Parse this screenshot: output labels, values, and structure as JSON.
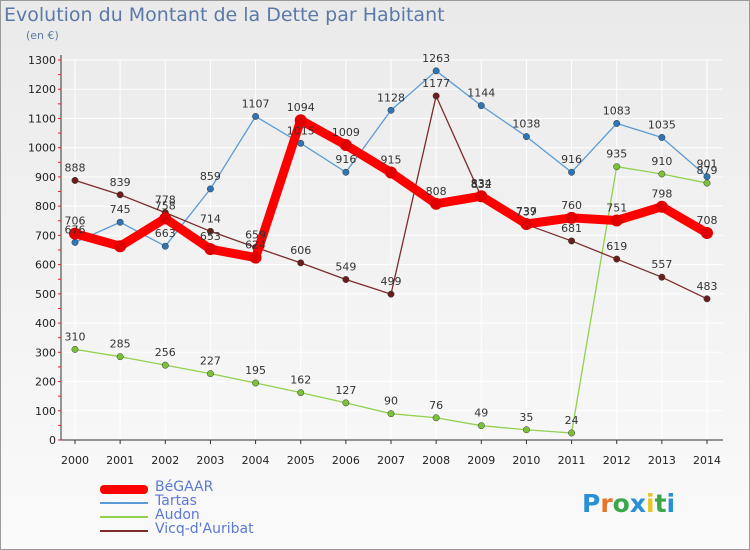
{
  "header": {
    "title": "Evolution du Montant de la Dette par Habitant",
    "unit": "(en €)"
  },
  "logo": {
    "text": "Proxiti",
    "letter_colors": [
      "#2a8fd6",
      "#e8762a",
      "#3aa84a",
      "#2a8fd6",
      "#e8c62a",
      "#3aa84a",
      "#2a8fd6"
    ]
  },
  "chart_data": {
    "type": "line",
    "x": [
      "2000",
      "2001",
      "2002",
      "2003",
      "2004",
      "2005",
      "2006",
      "2007",
      "2008",
      "2009",
      "2010",
      "2011",
      "2012",
      "2013",
      "2014"
    ],
    "ylim": [
      0,
      1300
    ],
    "yticks": [
      0,
      100,
      200,
      300,
      400,
      500,
      600,
      700,
      800,
      900,
      1000,
      1100,
      1200,
      1300
    ],
    "grid": true,
    "legend_position": "bottom-left",
    "series": [
      {
        "name": "Tartas",
        "color": "#5b9bd5",
        "marker": "#2e75b6",
        "values": [
          676,
          745,
          663,
          859,
          1107,
          1015,
          916,
          1128,
          1263,
          1144,
          1038,
          916,
          1083,
          1035,
          901
        ]
      },
      {
        "name": "Audon",
        "color": "#92d050",
        "marker": "#7cc13a",
        "values": [
          310,
          285,
          256,
          227,
          195,
          162,
          127,
          90,
          76,
          49,
          35,
          24,
          935,
          910,
          879
        ]
      },
      {
        "name": "Vicq-d'Auribat",
        "color": "#7b2c2c",
        "marker": "#6b1e1e",
        "values": [
          888,
          839,
          778,
          714,
          659,
          606,
          549,
          499,
          1177,
          832,
          737,
          681,
          619,
          557,
          483
        ]
      },
      {
        "name": "BéGAAR",
        "color": "#ff0000",
        "marker": "#e00000",
        "values": [
          706,
          663,
          758,
          653,
          624,
          1094,
          1009,
          915,
          808,
          834,
          739,
          760,
          751,
          798,
          708
        ]
      }
    ],
    "labels": [
      {
        "v": 706
      },
      {
        "v": 676
      },
      {
        "v": 745
      },
      {
        "v": 663
      },
      {
        "v": 758
      },
      {
        "v": 653
      },
      {
        "v": 859
      },
      {
        "v": 1107
      },
      {
        "v": 1094
      },
      {
        "v": 1015
      },
      {
        "v": 1009
      },
      {
        "v": 916
      },
      {
        "v": 1128
      },
      {
        "v": 915
      },
      {
        "v": 1263
      },
      {
        "v": 1177
      },
      {
        "v": 808
      },
      {
        "v": 1144
      },
      {
        "v": 834
      },
      {
        "v": 832
      },
      {
        "v": 1038
      },
      {
        "v": 739
      },
      {
        "v": 737
      },
      {
        "v": 916
      },
      {
        "v": 760
      },
      {
        "v": 681
      },
      {
        "v": 1083
      },
      {
        "v": 935
      },
      {
        "v": 751
      },
      {
        "v": 619
      },
      {
        "v": 1035
      },
      {
        "v": 910
      },
      {
        "v": 798
      },
      {
        "v": 557
      },
      {
        "v": 901
      },
      {
        "v": 879
      },
      {
        "v": 708
      },
      {
        "v": 483
      },
      {
        "v": 888
      },
      {
        "v": 839
      },
      {
        "v": 778
      },
      {
        "v": 714
      },
      {
        "v": 659
      },
      {
        "v": 606
      },
      {
        "v": 549
      },
      {
        "v": 499
      },
      {
        "v": 624
      },
      {
        "v": 310
      },
      {
        "v": 285
      },
      {
        "v": 256
      },
      {
        "v": 227
      },
      {
        "v": 195
      },
      {
        "v": 162
      },
      {
        "v": 127
      },
      {
        "v": 90
      },
      {
        "v": 76
      },
      {
        "v": 49
      },
      {
        "v": 35
      },
      {
        "v": 24
      }
    ]
  },
  "legend": {
    "items": [
      {
        "label": "BéGAAR",
        "color": "#ff0000"
      },
      {
        "label": "Tartas",
        "color": "#5b9bd5"
      },
      {
        "label": "Audon",
        "color": "#92d050"
      },
      {
        "label": "Vicq-d'Auribat",
        "color": "#7b2c2c"
      }
    ]
  }
}
